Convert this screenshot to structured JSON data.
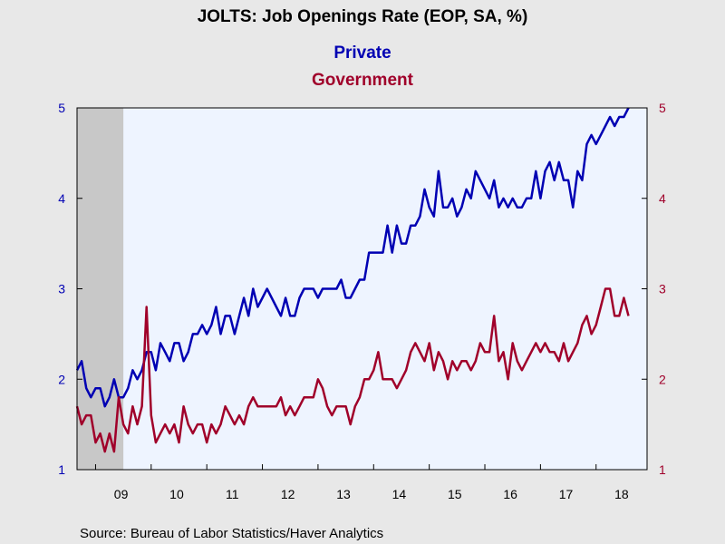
{
  "chart_data": {
    "type": "line",
    "title": "JOLTS: Job Openings Rate (EOP, SA, %)",
    "source": "Source:  Bureau of Labor Statistics/Haver Analytics",
    "x_start": "2008-09",
    "x_end": "2018-12",
    "x_tick_labels": [
      {
        "label": "09",
        "year": 2009
      },
      {
        "label": "10",
        "year": 2010
      },
      {
        "label": "11",
        "year": 2011
      },
      {
        "label": "12",
        "year": 2012
      },
      {
        "label": "13",
        "year": 2013
      },
      {
        "label": "14",
        "year": 2014
      },
      {
        "label": "15",
        "year": 2015
      },
      {
        "label": "16",
        "year": 2016
      },
      {
        "label": "17",
        "year": 2017
      },
      {
        "label": "18",
        "year": 2018
      }
    ],
    "ylim_left": [
      1,
      5
    ],
    "ylim_right": [
      1,
      5
    ],
    "y_ticks": [
      "1",
      "2",
      "3",
      "4",
      "5"
    ],
    "recession_shading": {
      "start": "2008-09",
      "end": "2009-06",
      "color": "#c8c8c8"
    },
    "plot_background": "#eef4ff",
    "series": [
      {
        "name": "Private",
        "axis": "left",
        "color": "#0000b3",
        "start": "2008-09",
        "values": [
          2.1,
          2.2,
          1.9,
          1.8,
          1.9,
          1.9,
          1.7,
          1.8,
          2.0,
          1.8,
          1.8,
          1.9,
          2.1,
          2.0,
          2.1,
          2.3,
          2.3,
          2.1,
          2.4,
          2.3,
          2.2,
          2.4,
          2.4,
          2.2,
          2.3,
          2.5,
          2.5,
          2.6,
          2.5,
          2.6,
          2.8,
          2.5,
          2.7,
          2.7,
          2.5,
          2.7,
          2.9,
          2.7,
          3.0,
          2.8,
          2.9,
          3.0,
          2.9,
          2.8,
          2.7,
          2.9,
          2.7,
          2.7,
          2.9,
          3.0,
          3.0,
          3.0,
          2.9,
          3.0,
          3.0,
          3.0,
          3.0,
          3.1,
          2.9,
          2.9,
          3.0,
          3.1,
          3.1,
          3.4,
          3.4,
          3.4,
          3.4,
          3.7,
          3.4,
          3.7,
          3.5,
          3.5,
          3.7,
          3.7,
          3.8,
          4.1,
          3.9,
          3.8,
          4.3,
          3.9,
          3.9,
          4.0,
          3.8,
          3.9,
          4.1,
          4.0,
          4.3,
          4.2,
          4.1,
          4.0,
          4.2,
          3.9,
          4.0,
          3.9,
          4.0,
          3.9,
          3.9,
          4.0,
          4.0,
          4.3,
          4.0,
          4.3,
          4.4,
          4.2,
          4.4,
          4.2,
          4.2,
          3.9,
          4.3,
          4.2,
          4.6,
          4.7,
          4.6,
          4.7,
          4.8,
          4.9,
          4.8,
          4.9,
          4.9,
          5.0
        ]
      },
      {
        "name": "Government",
        "axis": "right",
        "color": "#a0002a",
        "start": "2008-09",
        "values": [
          1.7,
          1.5,
          1.6,
          1.6,
          1.3,
          1.4,
          1.2,
          1.4,
          1.2,
          1.8,
          1.5,
          1.4,
          1.7,
          1.5,
          1.7,
          2.8,
          1.6,
          1.3,
          1.4,
          1.5,
          1.4,
          1.5,
          1.3,
          1.7,
          1.5,
          1.4,
          1.5,
          1.5,
          1.3,
          1.5,
          1.4,
          1.5,
          1.7,
          1.6,
          1.5,
          1.6,
          1.5,
          1.7,
          1.8,
          1.7,
          1.7,
          1.7,
          1.7,
          1.7,
          1.8,
          1.6,
          1.7,
          1.6,
          1.7,
          1.8,
          1.8,
          1.8,
          2.0,
          1.9,
          1.7,
          1.6,
          1.7,
          1.7,
          1.7,
          1.5,
          1.7,
          1.8,
          2.0,
          2.0,
          2.1,
          2.3,
          2.0,
          2.0,
          2.0,
          1.9,
          2.0,
          2.1,
          2.3,
          2.4,
          2.3,
          2.2,
          2.4,
          2.1,
          2.3,
          2.2,
          2.0,
          2.2,
          2.1,
          2.2,
          2.2,
          2.1,
          2.2,
          2.4,
          2.3,
          2.3,
          2.7,
          2.2,
          2.3,
          2.0,
          2.4,
          2.2,
          2.1,
          2.2,
          2.3,
          2.4,
          2.3,
          2.4,
          2.3,
          2.3,
          2.2,
          2.4,
          2.2,
          2.3,
          2.4,
          2.6,
          2.7,
          2.5,
          2.6,
          2.8,
          3.0,
          3.0,
          2.7,
          2.7,
          2.9,
          2.7
        ]
      }
    ]
  }
}
